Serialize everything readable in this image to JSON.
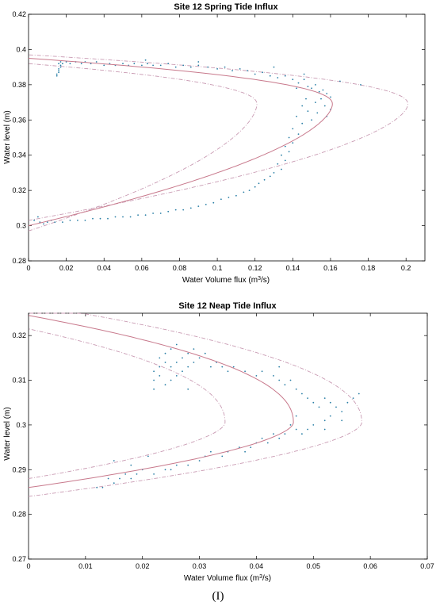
{
  "panel_label": "(I)",
  "colors": {
    "points": "#2a7fa6",
    "fit": "#c8798c",
    "bounds": "#c99bb3",
    "axis": "#000000"
  },
  "chart_data": [
    {
      "type": "scatter",
      "title": "Site 12 Spring Tide Influx",
      "xlabel_prefix": "Water Volume flux (m",
      "xlabel_sup": "3",
      "xlabel_suffix": "/s)",
      "ylabel": "Water level (m)",
      "xlim": [
        0,
        0.21
      ],
      "ylim": [
        0.28,
        0.42
      ],
      "xticks": [
        0,
        0.02,
        0.04,
        0.06,
        0.08,
        0.1,
        0.12,
        0.14,
        0.16,
        0.18,
        0.2
      ],
      "xtick_labels": [
        "0",
        "0.02",
        "0.04",
        "0.06",
        "0.08",
        "0.1",
        "0.12",
        "0.14",
        "0.16",
        "0.18",
        "0.2"
      ],
      "yticks": [
        0.28,
        0.3,
        0.32,
        0.34,
        0.36,
        0.38,
        0.4,
        0.42
      ],
      "ytick_labels": [
        "0.28",
        "0.3",
        "0.32",
        "0.34",
        "0.36",
        "0.38",
        "0.4",
        "0.42"
      ],
      "grid": false,
      "fit_curve": {
        "nose_x": 0.161,
        "nose_y": 0.369,
        "upper": [
          0.395,
          0.0
        ],
        "lower": [
          0.3,
          0.0
        ]
      },
      "lower_bound": {
        "nose_x": 0.121,
        "nose_y": 0.369,
        "upper": [
          0.392,
          0.0
        ],
        "lower": [
          0.297,
          0.0
        ]
      },
      "upper_bound": {
        "nose_x": 0.201,
        "nose_y": 0.369,
        "upper": [
          0.397,
          0.0
        ],
        "lower": [
          0.303,
          0.0
        ]
      },
      "points": [
        [
          0.015,
          0.385
        ],
        [
          0.016,
          0.387
        ],
        [
          0.016,
          0.389
        ],
        [
          0.017,
          0.391
        ],
        [
          0.016,
          0.392
        ],
        [
          0.017,
          0.393
        ],
        [
          0.015,
          0.386
        ],
        [
          0.016,
          0.388
        ],
        [
          0.017,
          0.39
        ],
        [
          0.018,
          0.392
        ],
        [
          0.02,
          0.393
        ],
        [
          0.022,
          0.392
        ],
        [
          0.025,
          0.393
        ],
        [
          0.028,
          0.392
        ],
        [
          0.03,
          0.393
        ],
        [
          0.033,
          0.392
        ],
        [
          0.036,
          0.393
        ],
        [
          0.04,
          0.391
        ],
        [
          0.043,
          0.392
        ],
        [
          0.046,
          0.391
        ],
        [
          0.05,
          0.392
        ],
        [
          0.053,
          0.391
        ],
        [
          0.056,
          0.392
        ],
        [
          0.06,
          0.391
        ],
        [
          0.063,
          0.392
        ],
        [
          0.066,
          0.391
        ],
        [
          0.07,
          0.391
        ],
        [
          0.074,
          0.392
        ],
        [
          0.078,
          0.39
        ],
        [
          0.082,
          0.391
        ],
        [
          0.086,
          0.39
        ],
        [
          0.09,
          0.391
        ],
        [
          0.095,
          0.39
        ],
        [
          0.1,
          0.389
        ],
        [
          0.104,
          0.39
        ],
        [
          0.108,
          0.388
        ],
        [
          0.112,
          0.389
        ],
        [
          0.116,
          0.388
        ],
        [
          0.12,
          0.386
        ],
        [
          0.124,
          0.387
        ],
        [
          0.128,
          0.385
        ],
        [
          0.132,
          0.384
        ],
        [
          0.136,
          0.385
        ],
        [
          0.14,
          0.383
        ],
        [
          0.143,
          0.381
        ],
        [
          0.146,
          0.383
        ],
        [
          0.148,
          0.379
        ],
        [
          0.15,
          0.378
        ],
        [
          0.152,
          0.38
        ],
        [
          0.154,
          0.376
        ],
        [
          0.156,
          0.377
        ],
        [
          0.158,
          0.375
        ],
        [
          0.16,
          0.373
        ],
        [
          0.155,
          0.372
        ],
        [
          0.152,
          0.37
        ],
        [
          0.157,
          0.368
        ],
        [
          0.16,
          0.366
        ],
        [
          0.153,
          0.364
        ],
        [
          0.158,
          0.362
        ],
        [
          0.15,
          0.36
        ],
        [
          0.147,
          0.372
        ],
        [
          0.145,
          0.368
        ],
        [
          0.148,
          0.365
        ],
        [
          0.142,
          0.362
        ],
        [
          0.145,
          0.358
        ],
        [
          0.14,
          0.355
        ],
        [
          0.143,
          0.352
        ],
        [
          0.138,
          0.35
        ],
        [
          0.14,
          0.347
        ],
        [
          0.136,
          0.345
        ],
        [
          0.138,
          0.342
        ],
        [
          0.134,
          0.34
        ],
        [
          0.136,
          0.337
        ],
        [
          0.132,
          0.335
        ],
        [
          0.134,
          0.332
        ],
        [
          0.13,
          0.33
        ],
        [
          0.128,
          0.328
        ],
        [
          0.125,
          0.326
        ],
        [
          0.122,
          0.324
        ],
        [
          0.12,
          0.322
        ],
        [
          0.117,
          0.32
        ],
        [
          0.114,
          0.319
        ],
        [
          0.11,
          0.317
        ],
        [
          0.106,
          0.316
        ],
        [
          0.102,
          0.315
        ],
        [
          0.098,
          0.313
        ],
        [
          0.094,
          0.312
        ],
        [
          0.09,
          0.311
        ],
        [
          0.086,
          0.31
        ],
        [
          0.082,
          0.309
        ],
        [
          0.078,
          0.309
        ],
        [
          0.074,
          0.308
        ],
        [
          0.07,
          0.307
        ],
        [
          0.066,
          0.307
        ],
        [
          0.062,
          0.306
        ],
        [
          0.058,
          0.306
        ],
        [
          0.054,
          0.305
        ],
        [
          0.05,
          0.305
        ],
        [
          0.046,
          0.305
        ],
        [
          0.042,
          0.304
        ],
        [
          0.038,
          0.304
        ],
        [
          0.034,
          0.304
        ],
        [
          0.03,
          0.303
        ],
        [
          0.026,
          0.303
        ],
        [
          0.022,
          0.303
        ],
        [
          0.018,
          0.302
        ],
        [
          0.014,
          0.302
        ],
        [
          0.01,
          0.302
        ],
        [
          0.006,
          0.302
        ],
        [
          0.003,
          0.303
        ],
        [
          0.005,
          0.305
        ],
        [
          0.008,
          0.301
        ],
        [
          0.012,
          0.303
        ],
        [
          0.165,
          0.382
        ],
        [
          0.176,
          0.38
        ],
        [
          0.13,
          0.39
        ],
        [
          0.09,
          0.393
        ],
        [
          0.062,
          0.394
        ],
        [
          0.142,
          0.378
        ],
        [
          0.146,
          0.386
        ]
      ]
    },
    {
      "type": "scatter",
      "title": "Site 12 Neap Tide Influx",
      "xlabel_prefix": "Water Volume flux (m",
      "xlabel_sup": "3",
      "xlabel_suffix": "/s)",
      "ylabel": "Water level (m)",
      "xlim": [
        0,
        0.07
      ],
      "ylim": [
        0.27,
        0.325
      ],
      "xticks": [
        0,
        0.01,
        0.02,
        0.03,
        0.04,
        0.05,
        0.06,
        0.07
      ],
      "xtick_labels": [
        "0",
        "0.01",
        "0.02",
        "0.03",
        "0.04",
        "0.05",
        "0.06",
        "0.07"
      ],
      "yticks": [
        0.27,
        0.28,
        0.29,
        0.3,
        0.31,
        0.32
      ],
      "ytick_labels": [
        "0.27",
        "0.28",
        "0.29",
        "0.3",
        "0.31",
        "0.32"
      ],
      "grid": false,
      "fit_curve": {
        "nose_x": 0.0465,
        "nose_y": 0.3005,
        "upper": [
          0.3245,
          0.0
        ],
        "lower": [
          0.286,
          0.0
        ]
      },
      "lower_bound": {
        "nose_x": 0.0345,
        "nose_y": 0.3005,
        "upper": [
          0.3215,
          0.0
        ],
        "lower": [
          0.288,
          0.0
        ]
      },
      "upper_bound": {
        "nose_x": 0.0585,
        "nose_y": 0.3005,
        "upper": [
          0.327,
          0.0
        ],
        "lower": [
          0.284,
          0.0
        ]
      },
      "points": [
        [
          0.022,
          0.308
        ],
        [
          0.022,
          0.31
        ],
        [
          0.023,
          0.311
        ],
        [
          0.022,
          0.312
        ],
        [
          0.023,
          0.313
        ],
        [
          0.024,
          0.314
        ],
        [
          0.023,
          0.315
        ],
        [
          0.024,
          0.316
        ],
        [
          0.025,
          0.317
        ],
        [
          0.026,
          0.318
        ],
        [
          0.024,
          0.309
        ],
        [
          0.025,
          0.31
        ],
        [
          0.026,
          0.311
        ],
        [
          0.027,
          0.312
        ],
        [
          0.028,
          0.313
        ],
        [
          0.029,
          0.314
        ],
        [
          0.03,
          0.315
        ],
        [
          0.031,
          0.316
        ],
        [
          0.025,
          0.313
        ],
        [
          0.026,
          0.314
        ],
        [
          0.027,
          0.315
        ],
        [
          0.028,
          0.316
        ],
        [
          0.029,
          0.317
        ],
        [
          0.032,
          0.313
        ],
        [
          0.033,
          0.314
        ],
        [
          0.034,
          0.313
        ],
        [
          0.035,
          0.312
        ],
        [
          0.036,
          0.313
        ],
        [
          0.038,
          0.312
        ],
        [
          0.04,
          0.311
        ],
        [
          0.041,
          0.312
        ],
        [
          0.043,
          0.311
        ],
        [
          0.044,
          0.31
        ],
        [
          0.045,
          0.309
        ],
        [
          0.046,
          0.31
        ],
        [
          0.047,
          0.308
        ],
        [
          0.048,
          0.307
        ],
        [
          0.049,
          0.306
        ],
        [
          0.05,
          0.305
        ],
        [
          0.051,
          0.304
        ],
        [
          0.052,
          0.306
        ],
        [
          0.053,
          0.305
        ],
        [
          0.054,
          0.304
        ],
        [
          0.055,
          0.303
        ],
        [
          0.056,
          0.305
        ],
        [
          0.057,
          0.306
        ],
        [
          0.053,
          0.302
        ],
        [
          0.052,
          0.301
        ],
        [
          0.05,
          0.3
        ],
        [
          0.049,
          0.299
        ],
        [
          0.048,
          0.298
        ],
        [
          0.047,
          0.299
        ],
        [
          0.046,
          0.3
        ],
        [
          0.045,
          0.298
        ],
        [
          0.044,
          0.297
        ],
        [
          0.043,
          0.298
        ],
        [
          0.042,
          0.296
        ],
        [
          0.041,
          0.297
        ],
        [
          0.04,
          0.296
        ],
        [
          0.039,
          0.295
        ],
        [
          0.038,
          0.294
        ],
        [
          0.037,
          0.295
        ],
        [
          0.035,
          0.294
        ],
        [
          0.034,
          0.293
        ],
        [
          0.032,
          0.294
        ],
        [
          0.031,
          0.293
        ],
        [
          0.03,
          0.292
        ],
        [
          0.028,
          0.291
        ],
        [
          0.026,
          0.291
        ],
        [
          0.025,
          0.29
        ],
        [
          0.024,
          0.29
        ],
        [
          0.022,
          0.289
        ],
        [
          0.02,
          0.29
        ],
        [
          0.019,
          0.289
        ],
        [
          0.018,
          0.288
        ],
        [
          0.017,
          0.289
        ],
        [
          0.016,
          0.288
        ],
        [
          0.015,
          0.287
        ],
        [
          0.014,
          0.288
        ],
        [
          0.013,
          0.286
        ],
        [
          0.012,
          0.286
        ],
        [
          0.015,
          0.292
        ],
        [
          0.018,
          0.291
        ],
        [
          0.021,
          0.293
        ],
        [
          0.028,
          0.308
        ],
        [
          0.052,
          0.299
        ],
        [
          0.055,
          0.301
        ],
        [
          0.044,
          0.313
        ],
        [
          0.058,
          0.307
        ],
        [
          0.047,
          0.302
        ]
      ]
    }
  ]
}
